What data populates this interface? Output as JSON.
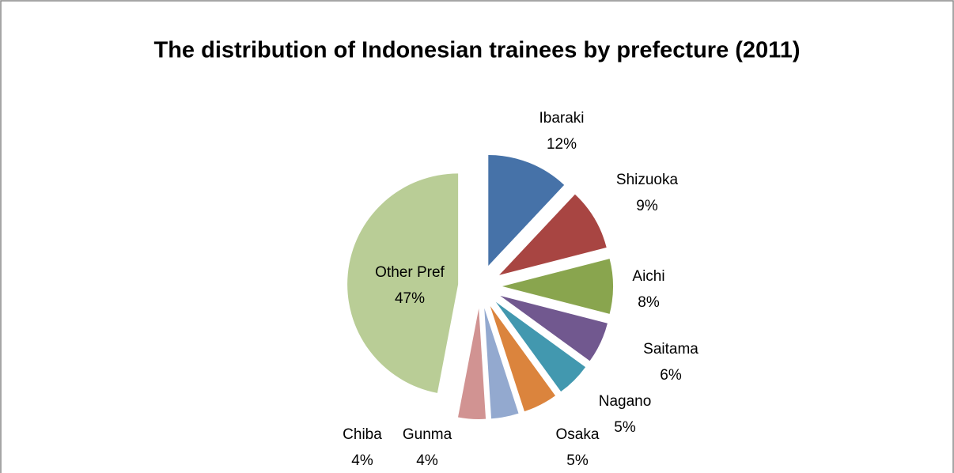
{
  "chart_data": {
    "type": "pie",
    "title": "The distribution of Indonesian trainees by prefecture (2011)",
    "categories": [
      "Ibaraki",
      "Shizuoka",
      "Aichi",
      "Saitama",
      "Nagano",
      "Osaka",
      "Gunma",
      "Chiba",
      "Other Pref"
    ],
    "values": [
      12,
      9,
      8,
      6,
      5,
      5,
      4,
      4,
      47
    ],
    "value_labels": [
      "12%",
      "9%",
      "8%",
      "6%",
      "5%",
      "5%",
      "4%",
      "4%",
      "47%"
    ],
    "colors": [
      "#4672a8",
      "#a84542",
      "#89a54e",
      "#71588f",
      "#4298af",
      "#db843d",
      "#93a9cf",
      "#d19392",
      "#b9cd96"
    ]
  }
}
